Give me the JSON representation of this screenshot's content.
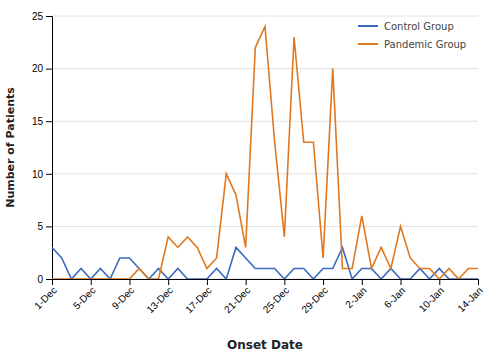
{
  "chart_data": {
    "type": "line",
    "x_label": "Onset Date",
    "y_label": "Number of Patients",
    "categories": [
      "1-Dec",
      null,
      null,
      null,
      "5-Dec",
      null,
      null,
      null,
      "9-Dec",
      null,
      null,
      null,
      "13-Dec",
      null,
      null,
      null,
      "17-Dec",
      null,
      null,
      null,
      "21-Dec",
      null,
      null,
      null,
      "25-Dec",
      null,
      null,
      null,
      "29-Dec",
      null,
      null,
      null,
      "2-Jan",
      null,
      null,
      null,
      "6-Jan",
      null,
      null,
      null,
      "10-Jan",
      null,
      null,
      null,
      "14-Jan"
    ],
    "series": [
      {
        "name": "Control Group",
        "color": "#3a6bbf",
        "values": [
          3,
          2,
          0,
          1,
          0,
          1,
          0,
          2,
          2,
          1,
          0,
          1,
          0,
          1,
          0,
          0,
          0,
          1,
          0,
          3,
          2,
          1,
          1,
          1,
          0,
          1,
          1,
          0,
          1,
          1,
          3,
          0,
          1,
          1,
          0,
          1,
          0,
          0,
          1,
          0,
          1,
          0,
          0,
          0,
          0
        ]
      },
      {
        "name": "Pandemic Group",
        "color": "#e07820",
        "values": [
          0,
          0,
          0,
          0,
          0,
          0,
          0,
          0,
          0,
          1,
          0,
          0,
          4,
          3,
          4,
          3,
          1,
          2,
          10,
          8,
          3,
          22,
          24,
          13,
          4,
          23,
          13,
          13,
          2,
          20,
          1,
          1,
          6,
          1,
          3,
          1,
          5,
          2,
          1,
          1,
          0,
          1,
          0,
          1,
          1
        ]
      }
    ],
    "ylim": [
      0,
      25
    ],
    "yticks": [
      0,
      5,
      10,
      15,
      20,
      25
    ],
    "grid": true,
    "legend": "upper right"
  }
}
